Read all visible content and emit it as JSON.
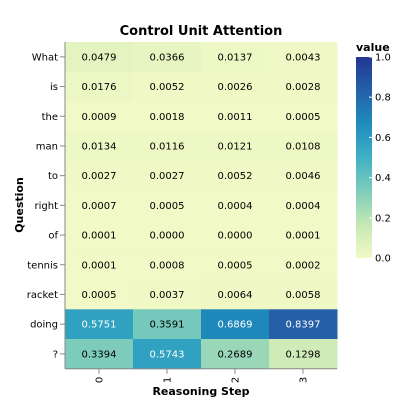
{
  "chart_data": {
    "type": "heatmap",
    "title": "Control Unit Attention",
    "xlabel": "Reasoning Step",
    "ylabel": "Question",
    "x_categories": [
      "0",
      "1",
      "2",
      "3"
    ],
    "y_categories": [
      "What",
      "is",
      "the",
      "man",
      "to",
      "right",
      "of",
      "tennis",
      "racket",
      "doing",
      "?"
    ],
    "values": [
      [
        0.0479,
        0.0366,
        0.0137,
        0.0043
      ],
      [
        0.0176,
        0.0052,
        0.0026,
        0.0028
      ],
      [
        0.0009,
        0.0018,
        0.0011,
        0.0005
      ],
      [
        0.0134,
        0.0116,
        0.0121,
        0.0108
      ],
      [
        0.0027,
        0.0027,
        0.0052,
        0.0046
      ],
      [
        0.0007,
        0.0005,
        0.0004,
        0.0004
      ],
      [
        0.0001,
        0.0,
        0.0,
        0.0001
      ],
      [
        0.0001,
        0.0008,
        0.0005,
        0.0002
      ],
      [
        0.0005,
        0.0037,
        0.0064,
        0.0058
      ],
      [
        0.5751,
        0.3591,
        0.6869,
        0.8397
      ],
      [
        0.3394,
        0.5743,
        0.2689,
        0.1298
      ]
    ],
    "value_labels": [
      [
        "0.0479",
        "0.0366",
        "0.0137",
        "0.0043"
      ],
      [
        "0.0176",
        "0.0052",
        "0.0026",
        "0.0028"
      ],
      [
        "0.0009",
        "0.0018",
        "0.0011",
        "0.0005"
      ],
      [
        "0.0134",
        "0.0116",
        "0.0121",
        "0.0108"
      ],
      [
        "0.0027",
        "0.0027",
        "0.0052",
        "0.0046"
      ],
      [
        "0.0007",
        "0.0005",
        "0.0004",
        "0.0004"
      ],
      [
        "0.0001",
        "0.0000",
        "0.0000",
        "0.0001"
      ],
      [
        "0.0001",
        "0.0008",
        "0.0005",
        "0.0002"
      ],
      [
        "0.0005",
        "0.0037",
        "0.0064",
        "0.0058"
      ],
      [
        "0.5751",
        "0.3591",
        "0.6869",
        "0.8397"
      ],
      [
        "0.3394",
        "0.5743",
        "0.2689",
        "0.1298"
      ]
    ],
    "color_scale": {
      "name": "yellowgreenblue",
      "domain": [
        0,
        1
      ],
      "colors": [
        "#f1f9c6",
        "#c5e8b4",
        "#7fccbb",
        "#3fb1c4",
        "#1e8dbd",
        "#2461a8",
        "#253494"
      ]
    },
    "legend": {
      "title": "value",
      "position": "right",
      "ticks": [
        "1.0",
        "0.8",
        "0.6",
        "0.4",
        "0.2",
        "0.0"
      ],
      "tick_values": [
        1.0,
        0.8,
        0.6,
        0.4,
        0.2,
        0.0
      ]
    }
  }
}
